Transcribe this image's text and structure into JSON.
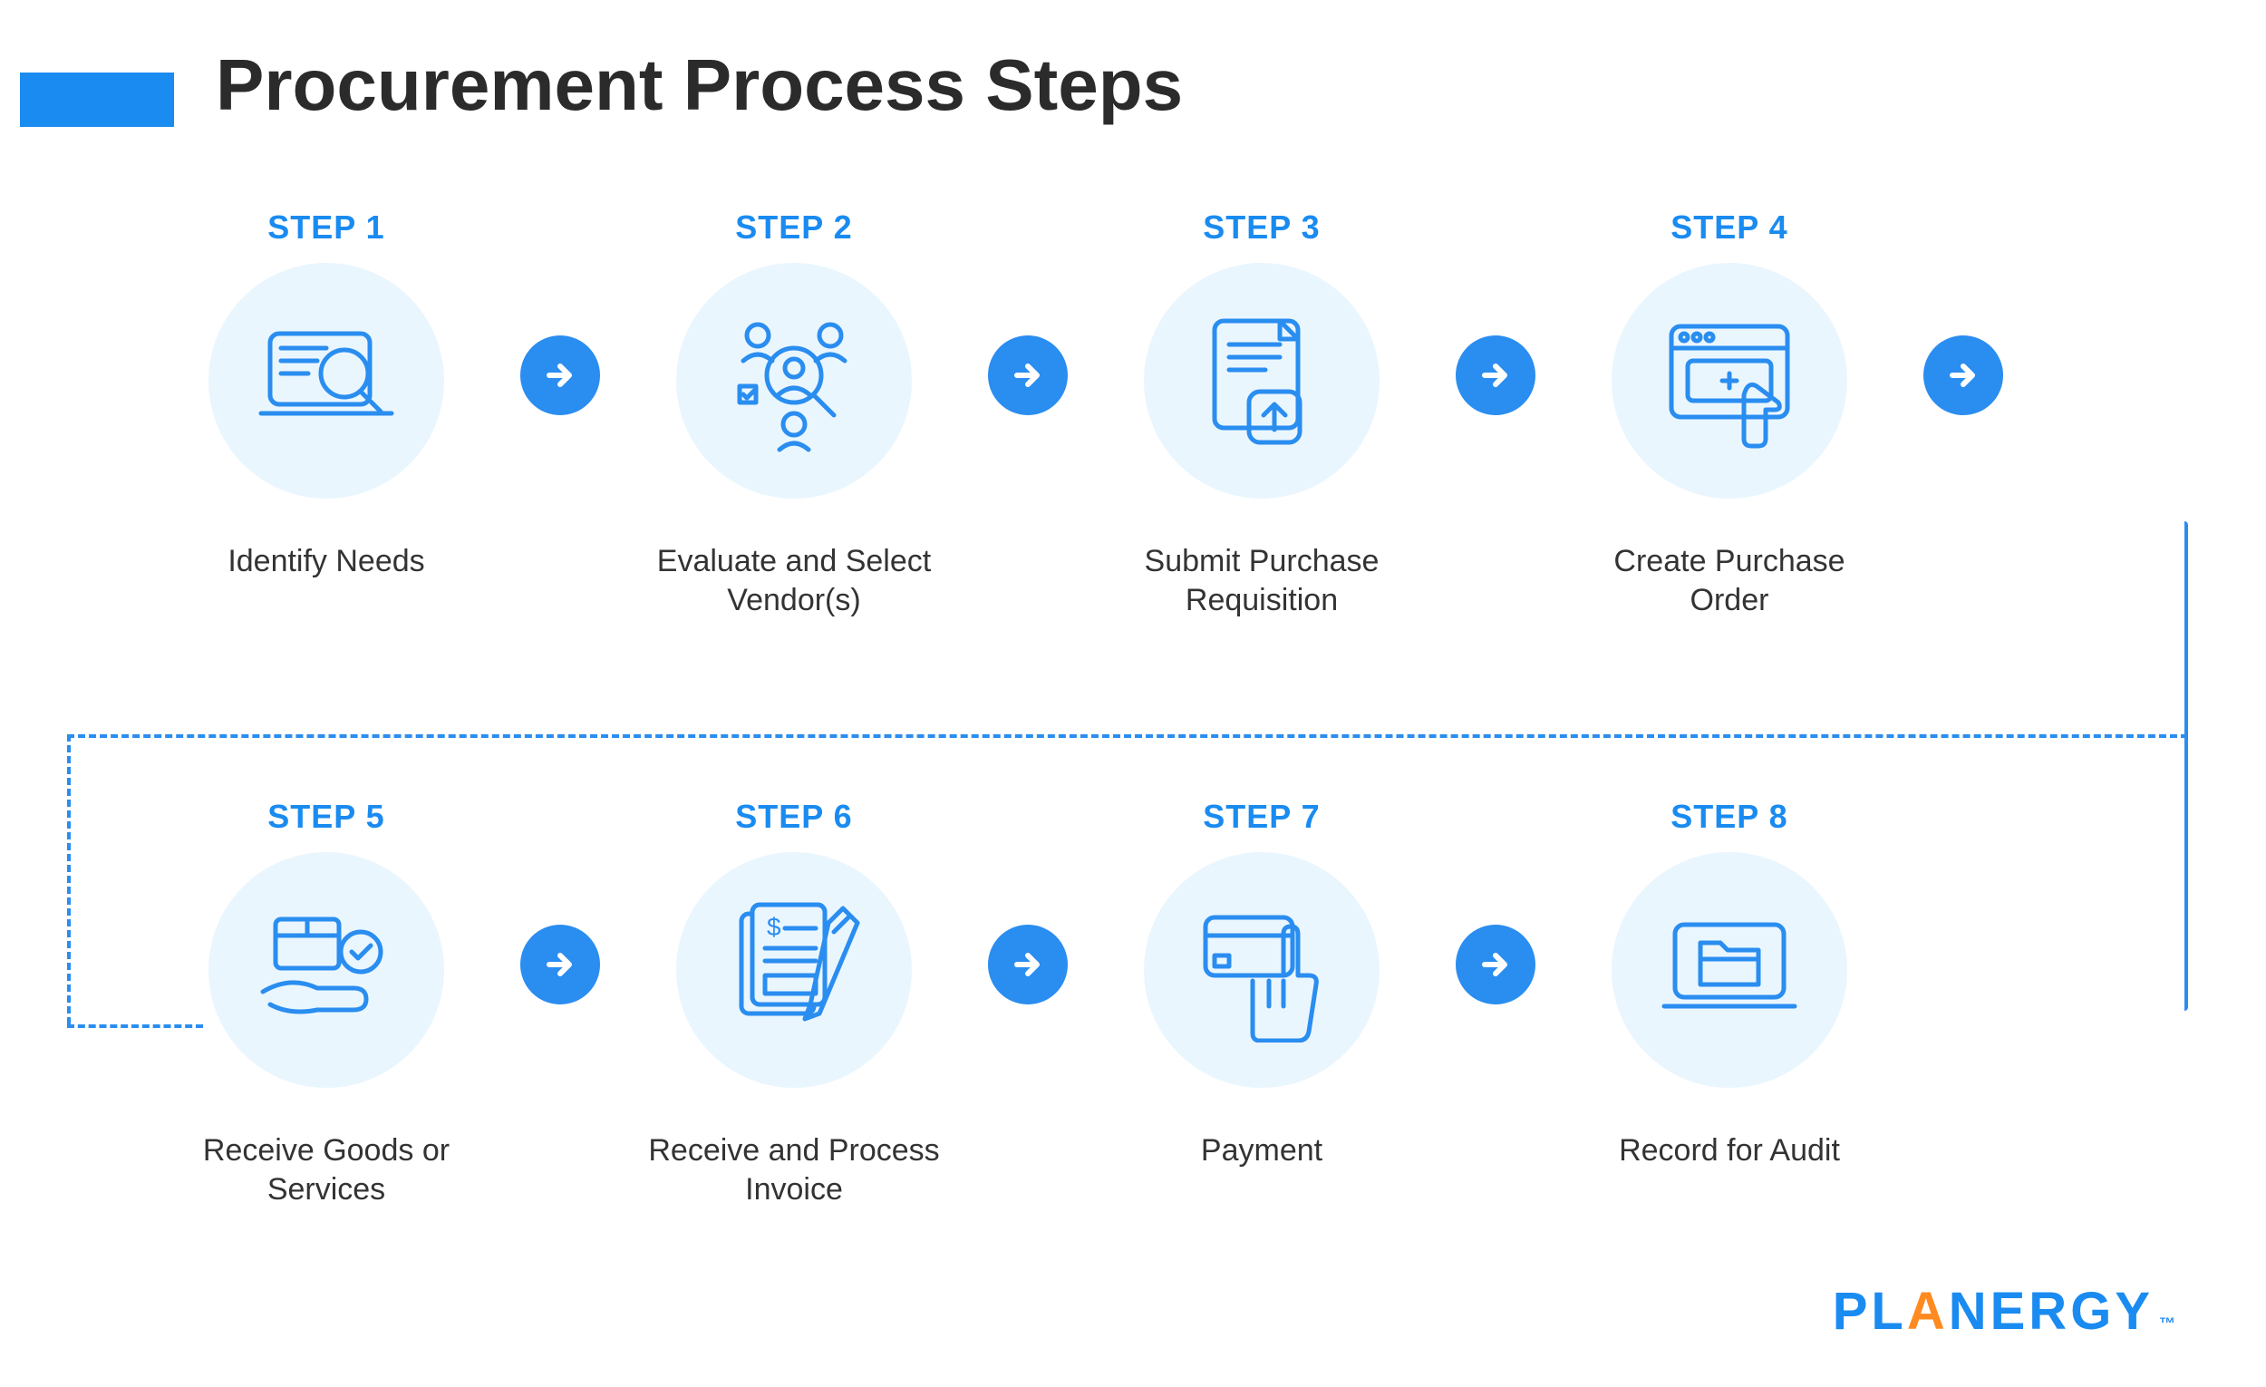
{
  "colors": {
    "accent": "#1a8bf0",
    "accent_dark": "#1478d6",
    "icon_bg": "#eaf6fe",
    "icon_stroke": "#2a8df0",
    "arrow_bg": "#2a8df0",
    "arrow_fg": "#ffffff",
    "title_color": "#2b2b2b",
    "desc_color": "#333333",
    "dashed": "#2a8df0",
    "brand_blue": "#1a8bf0",
    "brand_orange": "#ff8a1f"
  },
  "title": "Procurement Process Steps",
  "brand": {
    "name": "PLANERGY",
    "tm": "™",
    "orange_letter_index": 2
  },
  "steps": [
    {
      "label": "STEP 1",
      "desc": "Identify Needs",
      "icon": "laptop-search"
    },
    {
      "label": "STEP 2",
      "desc": "Evaluate and Select Vendor(s)",
      "icon": "people-search"
    },
    {
      "label": "STEP 3",
      "desc": "Submit Purchase Requisition",
      "icon": "document-upload"
    },
    {
      "label": "STEP 4",
      "desc": "Create Purchase Order",
      "icon": "browser-click"
    },
    {
      "label": "STEP 5",
      "desc": "Receive Goods or Services",
      "icon": "hand-box-check"
    },
    {
      "label": "STEP 6",
      "desc": "Receive and Process Invoice",
      "icon": "invoice-pen"
    },
    {
      "label": "STEP 7",
      "desc": "Payment",
      "icon": "card-hand"
    },
    {
      "label": "STEP 8",
      "desc": "Record for Audit",
      "icon": "laptop-folder"
    }
  ],
  "styling": {
    "title_fontsize": 80,
    "step_label_fontsize": 36,
    "desc_fontsize": 34,
    "circle_diameter": 260,
    "arrow_diameter": 88,
    "icon_stroke_width": 5,
    "dashed_stroke_width": 4
  }
}
